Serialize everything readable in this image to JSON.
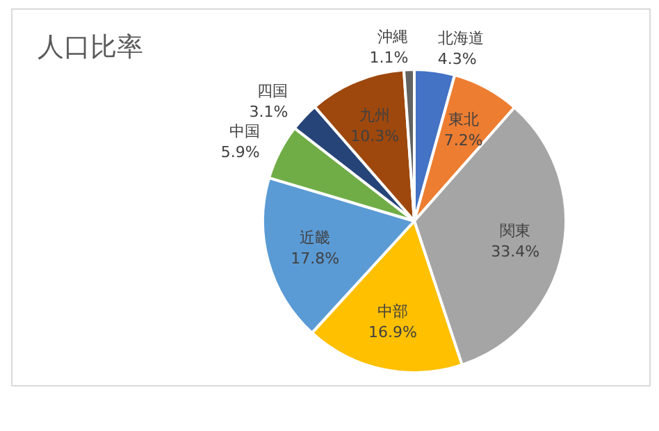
{
  "chart_data": {
    "type": "pie",
    "title": "人口比率",
    "categories": [
      "北海道",
      "東北",
      "関東",
      "中部",
      "近畿",
      "中国",
      "四国",
      "九州",
      "沖縄"
    ],
    "values": [
      4.3,
      7.2,
      33.4,
      16.9,
      17.8,
      5.9,
      3.1,
      10.3,
      1.1
    ],
    "colors": [
      "#4472c4",
      "#ed7d31",
      "#a5a5a5",
      "#ffc000",
      "#5b9bd5",
      "#70ad47",
      "#264478",
      "#9e480e",
      "#636363"
    ],
    "value_labels": [
      "4.3%",
      "7.2%",
      "33.4%",
      "16.9%",
      "17.8%",
      "5.9%",
      "3.1%",
      "10.3%",
      "1.1%"
    ],
    "legend": false
  }
}
